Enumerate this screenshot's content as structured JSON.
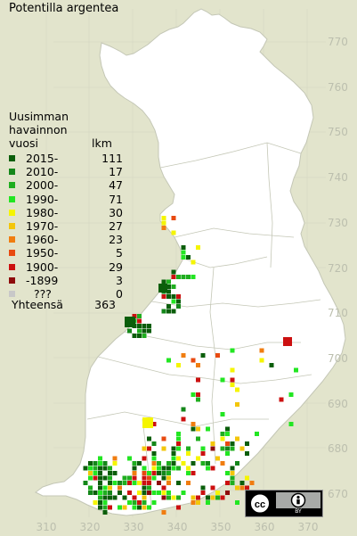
{
  "title": "Potentilla argentea",
  "legend": {
    "heading": [
      "Uusimman",
      "havainnon"
    ],
    "col_left": "vuosi",
    "col_right": "lkm",
    "rows": [
      {
        "label": "2015-",
        "count": "111",
        "color": "#0b5e0b"
      },
      {
        "label": "2010-",
        "count": "17",
        "color": "#14871a"
      },
      {
        "label": "2000-",
        "count": "47",
        "color": "#1fae1f"
      },
      {
        "label": "1990-",
        "count": "71",
        "color": "#22e622"
      },
      {
        "label": "1980-",
        "count": "30",
        "color": "#f5f500"
      },
      {
        "label": "1970-",
        "count": "27",
        "color": "#f3c60a"
      },
      {
        "label": "1960-",
        "count": "23",
        "color": "#f07d10"
      },
      {
        "label": "1950-",
        "count": "5",
        "color": "#e84a10"
      },
      {
        "label": "1900-",
        "count": "29",
        "color": "#cc1010"
      },
      {
        "label": "-1899",
        "count": "3",
        "color": "#8e0b0b"
      },
      {
        "label": "???",
        "count": "0",
        "color": "#c8c8c8"
      }
    ],
    "total_label": "Yhteensä",
    "total_count": "363"
  },
  "y_ticks": [
    "770",
    "760",
    "750",
    "740",
    "730",
    "720",
    "710",
    "700",
    "690",
    "680",
    "670"
  ],
  "x_ticks": [
    "310",
    "320",
    "330",
    "340",
    "350",
    "360",
    "370"
  ],
  "license_badge": {
    "text": "BY"
  },
  "colors": {
    "background": "#e2e4cc",
    "land": "#ffffff",
    "grid": "#d7d9c5",
    "border": "#c4c7b6"
  }
}
